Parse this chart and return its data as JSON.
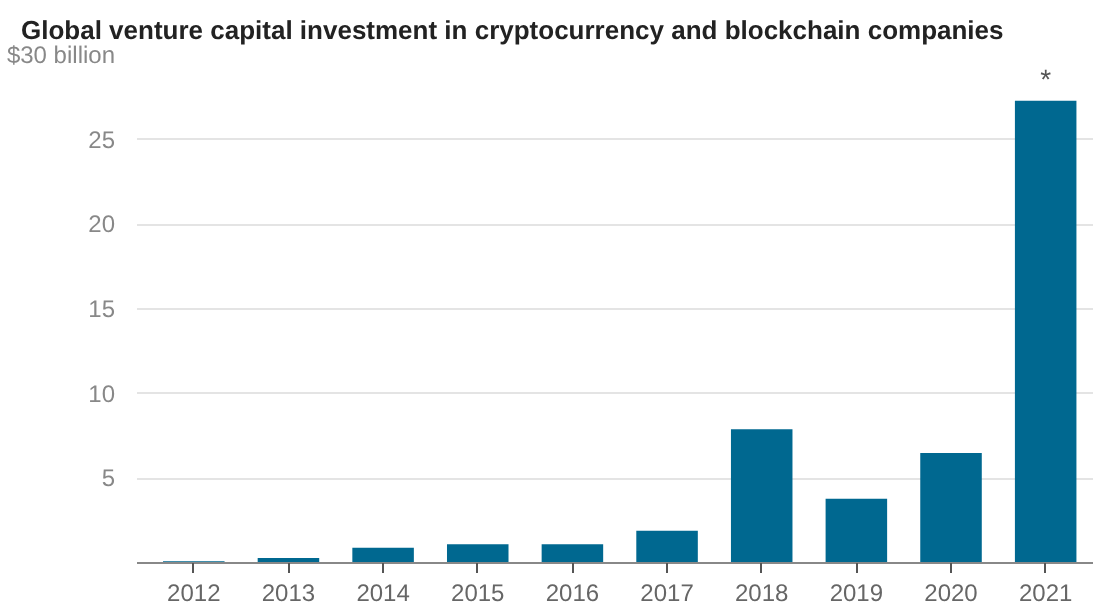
{
  "chart_data": {
    "type": "bar",
    "title": "Global venture capital investment in cryptocurrency and blockchain companies",
    "categories": [
      "2012",
      "2013",
      "2014",
      "2015",
      "2016",
      "2017",
      "2018",
      "2019",
      "2020",
      "2021"
    ],
    "values": [
      0.1,
      0.3,
      0.9,
      1.1,
      1.1,
      1.9,
      7.9,
      3.8,
      6.5,
      27.3
    ],
    "color": "#006890",
    "ylim": [
      0,
      30
    ],
    "yticks": [
      {
        "value": 0,
        "label": null
      },
      5,
      10,
      15,
      20,
      25,
      {
        "value": 30,
        "label": "$30 billion"
      }
    ],
    "grid": "y",
    "annotations": [
      {
        "text": "*",
        "x": "2021",
        "y": 27.3
      }
    ]
  }
}
